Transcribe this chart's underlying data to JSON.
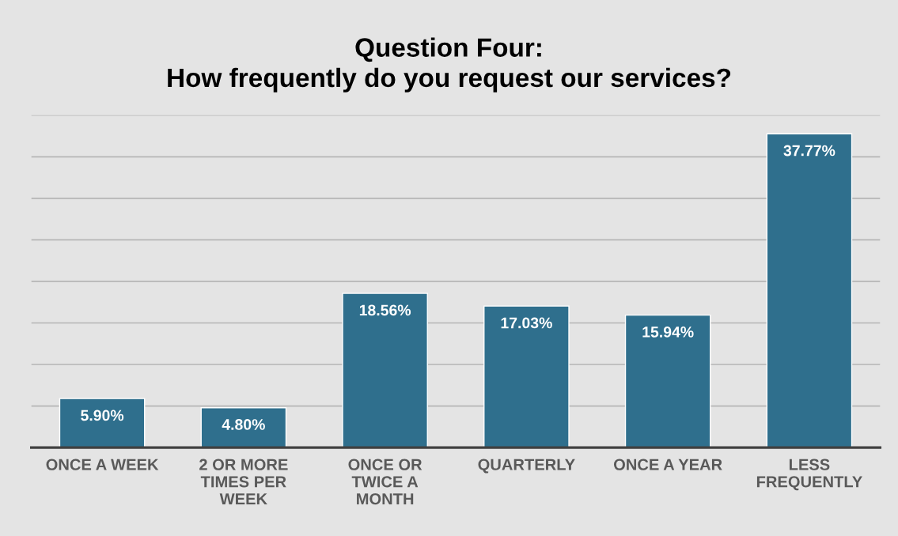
{
  "chart_data": {
    "type": "bar",
    "title": "Question Four:\nHow frequently do you request our services?",
    "categories": [
      "ONCE A WEEK",
      "2 OR MORE\nTIMES PER\nWEEK",
      "ONCE OR\nTWICE A\nMONTH",
      "QUARTERLY",
      "ONCE A YEAR",
      "LESS\nFREQUENTLY"
    ],
    "values": [
      5.9,
      4.8,
      18.56,
      17.03,
      15.94,
      37.77
    ],
    "value_labels": [
      "5.90%",
      "4.80%",
      "18.56%",
      "17.03%",
      "15.94%",
      "37.77%"
    ],
    "color": "#2f6f8d",
    "ylim": [
      0,
      40
    ],
    "yticks": [
      {
        "value": 0,
        "label": null
      },
      {
        "value": 5,
        "label": null
      },
      {
        "value": 10,
        "label": null
      },
      {
        "value": 15,
        "label": null
      },
      {
        "value": 20,
        "label": null
      },
      {
        "value": 25,
        "label": null
      },
      {
        "value": 30,
        "label": null
      },
      {
        "value": 35,
        "label": null
      },
      {
        "value": 40,
        "label": null
      }
    ],
    "grid": "y",
    "tick_labels": "x",
    "legend": false
  }
}
